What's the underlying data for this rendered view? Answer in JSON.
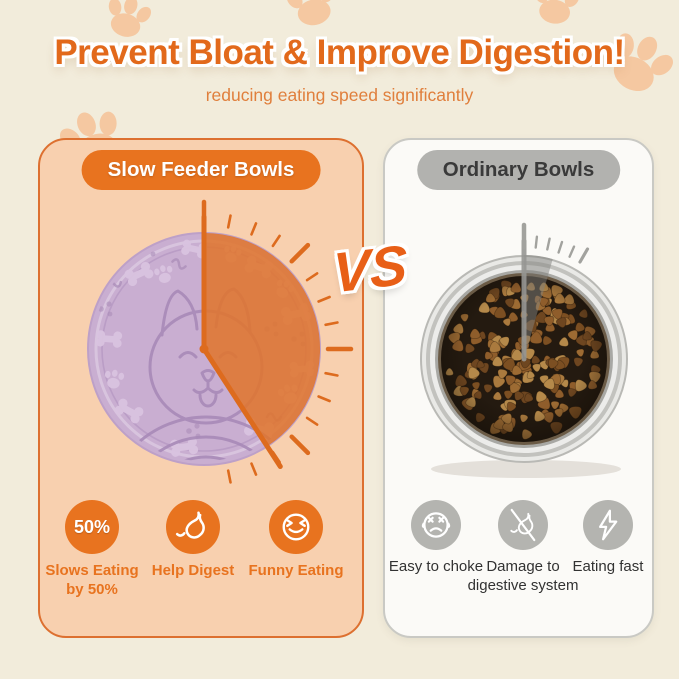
{
  "title": "Prevent Bloat & Improve Digestion!",
  "subtitle": "reducing eating speed significantly",
  "vs_label": "VS",
  "left_panel": {
    "badge": "Slow Feeder Bowls",
    "bowl_description": "slow feeder bowl with dog face, bone and paw maze pattern; clock overlay showing long eating time",
    "features": [
      {
        "icon": "percent-badge",
        "icon_text": "50%",
        "label": "Slows Eating by 50%"
      },
      {
        "icon": "stomach",
        "label": "Help Digest"
      },
      {
        "icon": "laughing-face",
        "label": "Funny Eating"
      }
    ]
  },
  "right_panel": {
    "badge": "Ordinary Bowls",
    "bowl_description": "stainless steel bowl full of kibble; clock overlay showing short eating time",
    "features": [
      {
        "icon": "choking-face",
        "label": "Easy to choke"
      },
      {
        "icon": "stomach-crossed",
        "label": "Damage to digestive system"
      },
      {
        "icon": "lightning-bolt",
        "label": "Eating fast"
      }
    ]
  },
  "colors": {
    "background": "#f2ecdb",
    "title_orange": "#e2691b",
    "subtitle_orange": "#e07f3c",
    "accent_orange": "#e8731f",
    "panel_left_fill": "#f8d0af",
    "panel_left_border": "#dd7030",
    "panel_right_fill": "#fbfaf7",
    "panel_right_border": "#c9c9c4",
    "badge_gray": "#b2b2af",
    "badge_gray_text": "#3a3a3a",
    "vs_orange": "#e85f17",
    "bowl_lilac": "#c9aed1",
    "bowl_lilac_dark": "#a88ab7",
    "bowl_lilac_light": "#dac3e0",
    "wedge_orange": "#e0742a",
    "clock_orange": "#dd6b1e",
    "gray_icon": "#b4b4b0",
    "label_dark": "#323232",
    "clock_gray": "#a2a29e",
    "paw_decor": "#f5c8a1",
    "bowl_interior": "#241a10",
    "kibble_palette": [
      "#8f5d2b",
      "#9d6b33",
      "#7c4f22",
      "#aa7a3e",
      "#6e4620",
      "#b5894a"
    ]
  }
}
